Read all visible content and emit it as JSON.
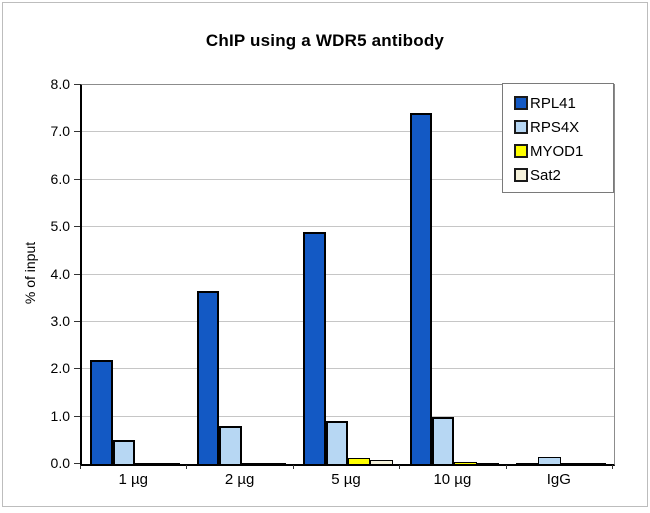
{
  "chart_data": {
    "type": "bar",
    "title": "ChIP using a WDR5 antibody",
    "xlabel": "",
    "ylabel": "% of input",
    "ylim": [
      0,
      8
    ],
    "ytick_step": 1.0,
    "yticks": [
      "0.0",
      "1.0",
      "2.0",
      "3.0",
      "4.0",
      "5.0",
      "6.0",
      "7.0",
      "8.0"
    ],
    "grid": true,
    "legend_position": "top-right",
    "categories": [
      "1 µg",
      "2 µg",
      "5 µg",
      "10 µg",
      "IgG"
    ],
    "series": [
      {
        "name": "RPL41",
        "color": "#1359c4",
        "values": [
          2.2,
          3.65,
          4.9,
          7.4,
          0.03
        ]
      },
      {
        "name": "RPS4X",
        "color": "#b7d7f3",
        "values": [
          0.5,
          0.8,
          0.9,
          1.0,
          0.15
        ]
      },
      {
        "name": "MYOD1",
        "color": "#ffff00",
        "values": [
          0.02,
          0.02,
          0.12,
          0.04,
          0.02
        ]
      },
      {
        "name": "Sat2",
        "color": "#f5f1da",
        "values": [
          0.02,
          0.02,
          0.08,
          0.03,
          0.02
        ]
      }
    ]
  },
  "frame": {
    "border_color": "#bdbdbd"
  }
}
